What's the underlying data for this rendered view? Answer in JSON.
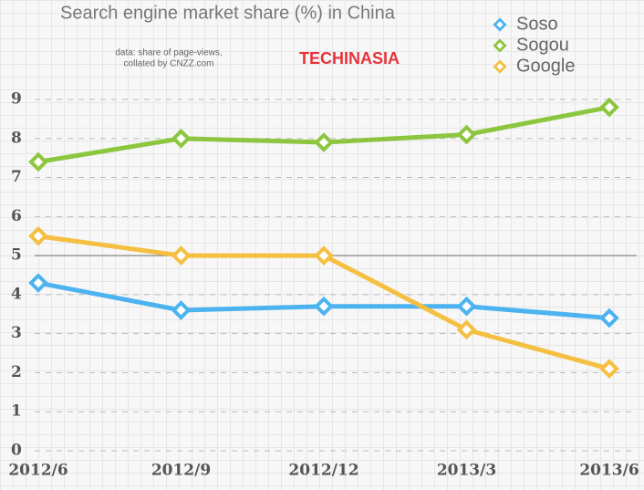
{
  "chart_data": {
    "type": "line",
    "title": "Search engine market share (%) in China",
    "note": [
      "data: share of page-views,",
      "collated by CNZZ.com"
    ],
    "logo": "TECHINASIA",
    "categories": [
      "2012/6",
      "2012/9",
      "2012/12",
      "2013/3",
      "2013/6"
    ],
    "series": [
      {
        "name": "Soso",
        "color": "#4db3f0",
        "values": [
          4.3,
          3.6,
          3.7,
          3.7,
          3.4
        ]
      },
      {
        "name": "Sogou",
        "color": "#8cc63f",
        "values": [
          7.4,
          8.0,
          7.9,
          8.1,
          8.8
        ]
      },
      {
        "name": "Google",
        "color": "#f5bf42",
        "values": [
          5.5,
          5.0,
          5.0,
          3.1,
          2.1
        ]
      }
    ],
    "ylim": [
      0,
      9
    ],
    "yticks": [
      0,
      1,
      2,
      3,
      4,
      5,
      6,
      7,
      8,
      9
    ],
    "reference_line": 5,
    "grid": true,
    "legend": "upper right"
  }
}
